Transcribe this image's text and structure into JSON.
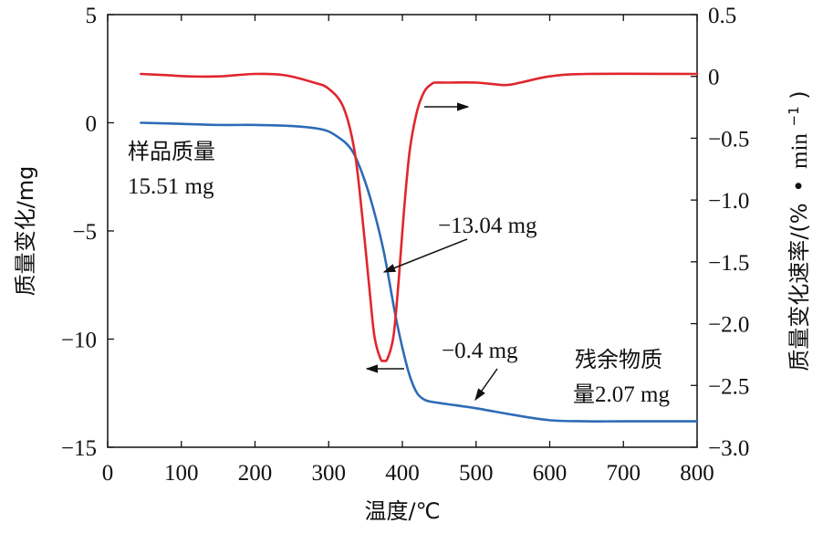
{
  "chart_data": {
    "type": "line",
    "xlabel": "温度/℃",
    "ylabel_left": "质量变化/mg",
    "ylabel_right_main": "质量变化速率/(%",
    "ylabel_right_dot": "•",
    "ylabel_right_unit": "min",
    "ylabel_right_sup": "−1",
    "ylabel_right_close": ")",
    "xlim": [
      0,
      800
    ],
    "ylim_left": [
      -15,
      5
    ],
    "ylim_right": [
      -3.0,
      0.5
    ],
    "x_ticks": [
      "0",
      "100",
      "200",
      "300",
      "400",
      "500",
      "600",
      "700",
      "800"
    ],
    "y_left_ticks": [
      "5",
      "0",
      "−5",
      "−10",
      "−15"
    ],
    "y_right_ticks": [
      "0.5",
      "0",
      "−0.5",
      "−1.0",
      "−1.5",
      "−2.0",
      "−2.5",
      "−3.0"
    ],
    "grid": false,
    "series": [
      {
        "axis": "left",
        "color": "#2e6bb5",
        "x": [
          45,
          100,
          150,
          200,
          250,
          290,
          310,
          330,
          345,
          360,
          375,
          390,
          400,
          410,
          420,
          430,
          440,
          460,
          500,
          550,
          600,
          650,
          700,
          800
        ],
        "y": [
          0.0,
          -0.05,
          -0.1,
          -0.1,
          -0.15,
          -0.3,
          -0.6,
          -1.2,
          -2.3,
          -3.9,
          -6.0,
          -8.8,
          -10.4,
          -11.7,
          -12.5,
          -12.8,
          -12.9,
          -13.0,
          -13.2,
          -13.5,
          -13.75,
          -13.8,
          -13.8,
          -13.8
        ]
      },
      {
        "axis": "right",
        "color": "#e0262e",
        "x": [
          45,
          80,
          110,
          150,
          200,
          240,
          280,
          300,
          320,
          335,
          345,
          355,
          362,
          370,
          375,
          380,
          388,
          395,
          402,
          410,
          420,
          430,
          440,
          445,
          460,
          500,
          540,
          560,
          600,
          650,
          800
        ],
        "y": [
          0.02,
          0.01,
          0.0,
          0.0,
          0.02,
          0.01,
          -0.05,
          -0.1,
          -0.25,
          -0.6,
          -1.1,
          -1.7,
          -2.1,
          -2.28,
          -2.3,
          -2.28,
          -2.1,
          -1.65,
          -1.1,
          -0.6,
          -0.28,
          -0.12,
          -0.06,
          -0.05,
          -0.05,
          -0.05,
          -0.07,
          -0.05,
          0.0,
          0.02,
          0.02
        ]
      }
    ],
    "annotations": {
      "sample_label": "样品质量",
      "sample_value": "15.51 mg",
      "loss_main": "−13.04 mg",
      "loss_minor": "−0.4 mg",
      "residue_label": "残余物质",
      "residue_value_prefix": "量",
      "residue_value": "2.07 mg"
    }
  }
}
